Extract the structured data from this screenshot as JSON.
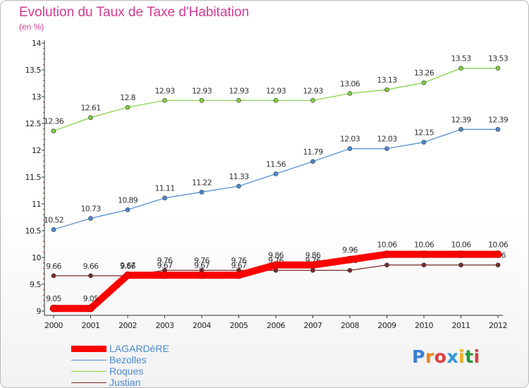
{
  "header": {
    "title": "Evolution du Taux de Taxe d'Habitation",
    "unit": "(en %)"
  },
  "chart_data": {
    "type": "line",
    "title": "Evolution du Taux de Taxe d'Habitation",
    "ylabel": "(en %)",
    "xlabel": "",
    "x": [
      "2000",
      "2001",
      "2002",
      "2003",
      "2004",
      "2005",
      "2006",
      "2007",
      "2008",
      "2009",
      "2010",
      "2011",
      "2012"
    ],
    "ylim": [
      9,
      14
    ],
    "yticks": [
      "9",
      "9.5",
      "10",
      "10.5",
      "11",
      "11.5",
      "12",
      "12.5",
      "13",
      "13.5",
      "14"
    ],
    "legend_position": "bottom-left",
    "series": [
      {
        "name": "Justian",
        "color": "#7a2a2a",
        "values": [
          9.66,
          9.66,
          9.66,
          9.76,
          9.76,
          9.76,
          9.76,
          9.76,
          9.76,
          9.86,
          9.86,
          9.86,
          9.86
        ],
        "labels": [
          "9.66",
          "9.66",
          "9.66",
          "9.76",
          "9.76",
          "9.76",
          "9.76",
          "9.76",
          "9.76",
          "9.86",
          "9.86",
          "9.86",
          "9.86"
        ]
      },
      {
        "name": "Bezolles",
        "color": "#4a8ad0",
        "values": [
          10.52,
          10.73,
          10.89,
          11.11,
          11.22,
          11.33,
          11.56,
          11.79,
          12.03,
          12.03,
          12.15,
          12.39,
          12.39
        ],
        "labels": [
          "10.52",
          "10.73",
          "10.89",
          "11.11",
          "11.22",
          "11.33",
          "11.56",
          "11.79",
          "12.03",
          "12.03",
          "12.15",
          "12.39",
          "12.39"
        ]
      },
      {
        "name": "Roques",
        "color": "#7fd040",
        "values": [
          12.36,
          12.61,
          12.8,
          12.93,
          12.93,
          12.93,
          12.93,
          12.93,
          13.06,
          13.13,
          13.26,
          13.53,
          13.53
        ],
        "labels": [
          "12.36",
          "12.61",
          "12.8",
          "12.93",
          "12.93",
          "12.93",
          "12.93",
          "12.93",
          "13.06",
          "13.13",
          "13.26",
          "13.53",
          "13.53"
        ]
      },
      {
        "name": "LAGARDèRE",
        "color": "#ff0000",
        "values": [
          9.05,
          9.05,
          9.67,
          9.67,
          9.67,
          9.67,
          9.86,
          9.86,
          9.96,
          10.06,
          10.06,
          10.06,
          10.06
        ],
        "labels": [
          "9.05",
          "9.05",
          "9.67",
          "9.67",
          "9.67",
          "9.67",
          "9.86",
          "9.86",
          "9.96",
          "10.06",
          "10.06",
          "10.06",
          "10.06"
        ]
      }
    ]
  },
  "legend": {
    "items": [
      {
        "label": "LAGARDèRE",
        "color": "#ff0000"
      },
      {
        "label": "Bezolles",
        "color": "#4a8ad0"
      },
      {
        "label": "Roques",
        "color": "#7fd040"
      },
      {
        "label": "Justian",
        "color": "#7a2a2a"
      }
    ]
  },
  "logo": {
    "text": "Proxiti",
    "letters": [
      "P",
      "r",
      "o",
      "x",
      "i",
      "t",
      "i"
    ],
    "colors": [
      "#3a7fd5",
      "#f08a1c",
      "#e04040",
      "#2b9bd8",
      "#f0b020",
      "#2a9a3a",
      "#e04040"
    ]
  }
}
